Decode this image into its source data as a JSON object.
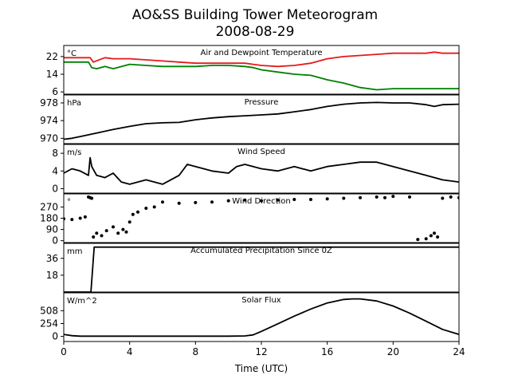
{
  "figure": {
    "title_line1": "AO&SS Building Tower Meteorogram",
    "title_line2": "2008-08-29",
    "xlabel": "Time (UTC)"
  },
  "chart_data": [
    {
      "type": "line",
      "title": "Air and Dewpoint Temperature",
      "unit": "°C",
      "xlim": [
        0,
        24
      ],
      "ylim": [
        5,
        27
      ],
      "yticks": [
        6,
        14,
        22
      ],
      "colors": [
        "#e41a1c",
        "#008000"
      ],
      "series": [
        {
          "x": [
            0,
            1.6,
            1.8,
            2.5,
            3,
            4,
            5,
            6,
            7,
            8,
            9,
            10,
            11,
            11.5,
            12,
            13,
            14,
            15,
            16,
            17,
            18,
            19,
            20,
            21,
            22,
            22.5,
            23,
            24
          ],
          "values": [
            21.5,
            21.5,
            19.5,
            21.5,
            21,
            21,
            20.5,
            20,
            19.5,
            19,
            19,
            19,
            19,
            18.5,
            18,
            17.5,
            18,
            19,
            21,
            22,
            22.5,
            23,
            23.5,
            23.5,
            23.5,
            24,
            23.5,
            23.5
          ]
        },
        {
          "x": [
            0,
            1.5,
            1.7,
            2,
            2.5,
            3,
            4,
            5,
            6,
            7,
            8,
            9,
            10,
            11,
            11.5,
            12,
            13,
            14,
            15,
            16,
            17,
            18,
            19,
            20,
            21,
            22,
            23,
            24
          ],
          "values": [
            19.5,
            19.5,
            17,
            16.5,
            17.5,
            16.5,
            18.5,
            18,
            17.5,
            17.5,
            17.5,
            18,
            18,
            17.5,
            17,
            16,
            15,
            14,
            13.5,
            11.5,
            10,
            8,
            7,
            7.5,
            7.5,
            7.5,
            7.5,
            7.5
          ]
        }
      ]
    },
    {
      "type": "line",
      "title": "Pressure",
      "unit": "hPa",
      "xlim": [
        0,
        24
      ],
      "ylim": [
        968.8,
        979.8
      ],
      "yticks": [
        970,
        974,
        978
      ],
      "series": [
        {
          "x": [
            0,
            0.5,
            1,
            2,
            3,
            4,
            5,
            6,
            7,
            8,
            9,
            10,
            11,
            12,
            13,
            14,
            15,
            16,
            17,
            18,
            19,
            20,
            21,
            22,
            22.5,
            23,
            24
          ],
          "values": [
            969.8,
            970.0,
            970.4,
            971.2,
            972.0,
            972.7,
            973.3,
            973.5,
            973.6,
            974.2,
            974.6,
            974.9,
            975.1,
            975.3,
            975.5,
            976.0,
            976.5,
            977.2,
            977.7,
            978.0,
            978.1,
            978.0,
            978.0,
            977.6,
            977.2,
            977.6,
            977.7
          ]
        }
      ]
    },
    {
      "type": "line",
      "title": "Wind Speed",
      "unit": "m/s",
      "xlim": [
        0,
        24
      ],
      "ylim": [
        -1,
        10
      ],
      "yticks": [
        0,
        4,
        8
      ],
      "series": [
        {
          "x": [
            0,
            0.5,
            1,
            1.5,
            1.6,
            1.7,
            2,
            2.5,
            3,
            3.5,
            4,
            5,
            6,
            7,
            7.5,
            8,
            9,
            10,
            10.5,
            11,
            11.5,
            12,
            13,
            14,
            15,
            16,
            17,
            18,
            19,
            20,
            21,
            22,
            23,
            24
          ],
          "values": [
            3.5,
            4.5,
            4,
            3,
            7,
            5,
            3,
            2.5,
            3.5,
            1.5,
            1,
            2,
            1,
            3,
            5.5,
            5,
            4,
            3.5,
            5,
            5.5,
            5,
            4.5,
            4,
            5,
            4,
            5,
            5.5,
            6,
            6,
            5,
            4,
            3,
            2,
            1.5
          ]
        }
      ]
    },
    {
      "type": "scatter",
      "title": "Wind Direction",
      "unit": "°",
      "xlim": [
        0,
        24
      ],
      "ylim": [
        -15,
        375
      ],
      "yticks": [
        0,
        90,
        180,
        270
      ],
      "series": [
        {
          "x": [
            0,
            0.5,
            1,
            1.3,
            1.5,
            1.6,
            1.7,
            1.8,
            2,
            2.3,
            2.6,
            3,
            3.3,
            3.6,
            3.8,
            4,
            4.2,
            4.5,
            5,
            5.5,
            6,
            7,
            8,
            9,
            10,
            11,
            12,
            13,
            14,
            15,
            16,
            17,
            18,
            19,
            19.5,
            20,
            21,
            21.5,
            22,
            22.3,
            22.5,
            22.7,
            23,
            23.5,
            24
          ],
          "values": [
            175,
            170,
            180,
            190,
            350,
            345,
            340,
            30,
            60,
            40,
            80,
            110,
            60,
            90,
            70,
            150,
            210,
            230,
            260,
            270,
            310,
            300,
            305,
            310,
            320,
            325,
            320,
            325,
            330,
            330,
            335,
            340,
            345,
            350,
            345,
            355,
            350,
            10,
            15,
            40,
            60,
            30,
            340,
            350,
            345
          ]
        }
      ]
    },
    {
      "type": "line",
      "title": "Accumulated Precipitation Since 0Z",
      "unit": "mm",
      "xlim": [
        0,
        24
      ],
      "ylim": [
        0,
        52
      ],
      "yticks": [
        18,
        36
      ],
      "series": [
        {
          "x": [
            0,
            1.65,
            1.85,
            24
          ],
          "values": [
            0,
            0,
            48,
            48
          ]
        }
      ]
    },
    {
      "type": "line",
      "title": "Solar Flux",
      "unit": "W/m^2",
      "xlim": [
        0,
        24
      ],
      "ylim": [
        -100,
        860
      ],
      "yticks": [
        0,
        254,
        508
      ],
      "series": [
        {
          "x": [
            0,
            0.5,
            1,
            2,
            4,
            6,
            8,
            10,
            11,
            11.5,
            12,
            13,
            14,
            15,
            16,
            17,
            17.5,
            18,
            19,
            20,
            21,
            22,
            23,
            24
          ],
          "values": [
            40,
            15,
            5,
            5,
            5,
            5,
            5,
            5,
            10,
            30,
            100,
            250,
            400,
            540,
            660,
            730,
            740,
            740,
            700,
            600,
            460,
            300,
            140,
            40
          ]
        }
      ]
    }
  ],
  "xaxis": {
    "ticks": [
      0,
      4,
      8,
      12,
      16,
      20,
      24
    ]
  }
}
